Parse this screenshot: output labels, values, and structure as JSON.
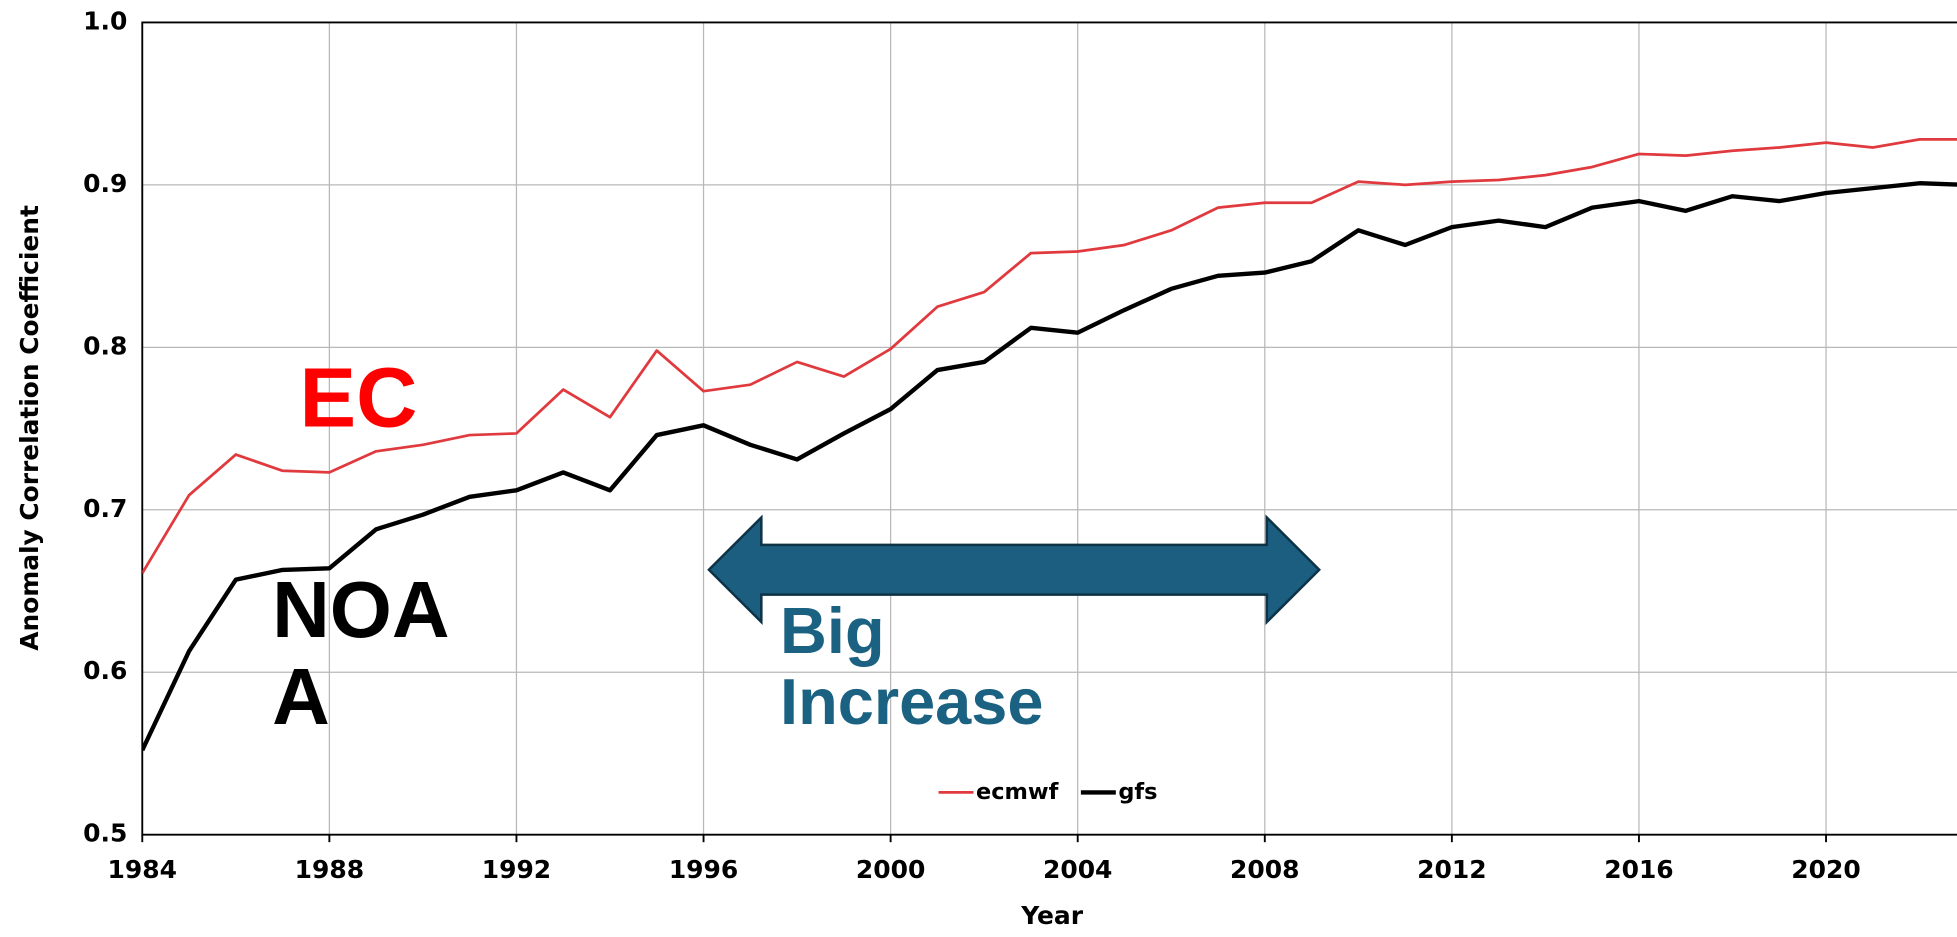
{
  "chart_data": {
    "type": "line",
    "x_label": "Year",
    "y_label": "Anomaly Correlation Coefficient",
    "x": [
      1984,
      1985,
      1986,
      1987,
      1988,
      1989,
      1990,
      1991,
      1992,
      1993,
      1994,
      1995,
      1996,
      1997,
      1998,
      1999,
      2000,
      2001,
      2002,
      2003,
      2004,
      2005,
      2006,
      2007,
      2008,
      2009,
      2010,
      2011,
      2012,
      2013,
      2014,
      2015,
      2016,
      2017,
      2018,
      2019,
      2020,
      2021,
      2022,
      2023
    ],
    "series": [
      {
        "name": "ecmwf",
        "color": "#e0393e",
        "values": [
          0.661,
          0.709,
          0.734,
          0.724,
          0.723,
          0.736,
          0.74,
          0.746,
          0.747,
          0.774,
          0.757,
          0.798,
          0.773,
          0.777,
          0.791,
          0.782,
          0.799,
          0.825,
          0.834,
          0.858,
          0.859,
          0.863,
          0.872,
          0.886,
          0.889,
          0.889,
          0.902,
          0.9,
          0.902,
          0.903,
          0.906,
          0.911,
          0.919,
          0.918,
          0.921,
          0.923,
          0.926,
          0.923,
          0.928,
          0.928
        ]
      },
      {
        "name": "gfs",
        "color": "#000000",
        "values": [
          0.552,
          0.613,
          0.657,
          0.663,
          0.664,
          0.688,
          0.697,
          0.708,
          0.712,
          0.723,
          0.712,
          0.746,
          0.752,
          0.74,
          0.731,
          0.747,
          0.762,
          0.786,
          0.791,
          0.812,
          0.809,
          0.823,
          0.836,
          0.844,
          0.846,
          0.853,
          0.872,
          0.863,
          0.874,
          0.878,
          0.874,
          0.886,
          0.89,
          0.884,
          0.893,
          0.89,
          0.895,
          0.898,
          0.901,
          0.9
        ]
      }
    ],
    "xlim": [
      1984,
      2022.8
    ],
    "ylim": [
      0.5,
      1.0
    ],
    "xticks": [
      1984,
      1988,
      1992,
      1996,
      2000,
      2004,
      2008,
      2012,
      2016,
      2020
    ],
    "yticks": [
      0.5,
      0.6,
      0.7,
      0.8,
      0.9,
      {
        "value": 1.0,
        "label": "1.0"
      }
    ],
    "grid": true,
    "legend": "bottom-center",
    "annotations": [
      {
        "text": "EC",
        "color": "#ff0000"
      },
      {
        "text": "NOAA",
        "color": "#000000"
      },
      {
        "text": "Big Increase",
        "color": "#1b6182"
      }
    ]
  }
}
